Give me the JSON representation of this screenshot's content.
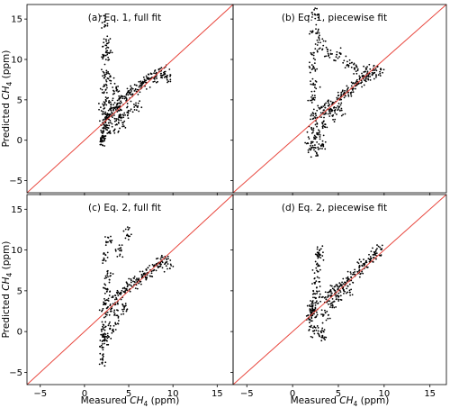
{
  "chart_data": [
    {
      "type": "scatter",
      "title": "(a) Eq. 1, full fit",
      "xlabel": "",
      "ylabel": "Predicted CH4 (ppm)",
      "xlim": [
        -6.5,
        16.8
      ],
      "ylim": [
        -6.5,
        16.8
      ],
      "xticks": [
        "−5",
        "0",
        "5",
        "10",
        "15"
      ],
      "yticks": [
        "−5",
        "0",
        "5",
        "10",
        "15"
      ],
      "reference_line": "1:1",
      "reference_line_color": "#e8453c",
      "marker_color": "#000000",
      "series": [
        {
          "values": [
            [
              2.0,
              0.2
            ],
            [
              2.1,
              1.0
            ],
            [
              2.2,
              2.0
            ],
            [
              2.3,
              3.0
            ],
            [
              2.2,
              4.0
            ],
            [
              2.5,
              5.0
            ],
            [
              2.7,
              2.5
            ],
            [
              2.4,
              1.5
            ],
            [
              3.0,
              3.5
            ],
            [
              3.2,
              4.0
            ],
            [
              3.5,
              4.5
            ],
            [
              3.8,
              3.8
            ],
            [
              4.0,
              4.8
            ],
            [
              4.5,
              5.2
            ],
            [
              5.0,
              5.8
            ],
            [
              5.5,
              6.0
            ],
            [
              6.0,
              6.4
            ],
            [
              6.5,
              7.0
            ],
            [
              7.0,
              7.2
            ],
            [
              7.5,
              7.8
            ],
            [
              8.0,
              8.0
            ],
            [
              8.5,
              8.2
            ],
            [
              9.0,
              8.4
            ],
            [
              9.5,
              7.9
            ],
            [
              3.0,
              1.0
            ],
            [
              3.5,
              2.0
            ],
            [
              4.0,
              3.0
            ],
            [
              2.3,
              8.0
            ],
            [
              2.3,
              10.0
            ],
            [
              2.4,
              12.0
            ],
            [
              2.2,
              14.5
            ],
            [
              2.6,
              11.0
            ],
            [
              2.8,
              7.5
            ],
            [
              2.2,
              6.5
            ],
            [
              3.6,
              6.2
            ],
            [
              4.2,
              2.2
            ],
            [
              5.0,
              3.5
            ],
            [
              6.0,
              4.2
            ],
            [
              2.1,
              -0.3
            ]
          ]
        }
      ]
    },
    {
      "type": "scatter",
      "title": "(b) Eq. 1, piecewise fit",
      "xlabel": "",
      "ylabel": "",
      "xlim": [
        -6.5,
        16.8
      ],
      "ylim": [
        -6.5,
        16.8
      ],
      "xticks": [
        "−5",
        "0",
        "5",
        "10",
        "15"
      ],
      "yticks": [
        "−5",
        "0",
        "5",
        "10",
        "15"
      ],
      "reference_line": "1:1",
      "reference_line_color": "#e8453c",
      "marker_color": "#000000",
      "series": [
        {
          "values": [
            [
              2.0,
              -1.0
            ],
            [
              2.1,
              0.0
            ],
            [
              2.2,
              1.5
            ],
            [
              2.3,
              3.0
            ],
            [
              2.2,
              5.0
            ],
            [
              2.4,
              7.0
            ],
            [
              2.3,
              9.0
            ],
            [
              2.5,
              11.0
            ],
            [
              2.4,
              13.5
            ],
            [
              2.3,
              15.8
            ],
            [
              3.0,
              3.5
            ],
            [
              3.5,
              4.0
            ],
            [
              4.0,
              4.5
            ],
            [
              4.5,
              4.0
            ],
            [
              5.0,
              5.0
            ],
            [
              5.5,
              5.5
            ],
            [
              6.0,
              6.0
            ],
            [
              6.5,
              6.5
            ],
            [
              7.0,
              7.0
            ],
            [
              7.5,
              7.5
            ],
            [
              8.0,
              7.8
            ],
            [
              8.5,
              8.2
            ],
            [
              9.0,
              8.6
            ],
            [
              9.5,
              8.5
            ],
            [
              5.0,
              10.5
            ],
            [
              6.0,
              9.5
            ],
            [
              7.0,
              9.0
            ],
            [
              8.0,
              8.5
            ],
            [
              4.0,
              10.8
            ],
            [
              3.0,
              12.0
            ],
            [
              2.8,
              0.5
            ],
            [
              3.2,
              -0.5
            ],
            [
              2.6,
              -1.2
            ],
            [
              3.5,
              2.0
            ],
            [
              4.2,
              3.0
            ],
            [
              5.2,
              3.8
            ]
          ]
        }
      ]
    },
    {
      "type": "scatter",
      "title": "(c) Eq. 2, full fit",
      "xlabel": "Measured CH4 (ppm)",
      "ylabel": "Predicted CH4 (ppm)",
      "xlim": [
        -6.5,
        16.8
      ],
      "ylim": [
        -6.5,
        16.8
      ],
      "xticks": [
        "−5",
        "0",
        "5",
        "10",
        "15"
      ],
      "yticks": [
        "−5",
        "0",
        "5",
        "10",
        "15"
      ],
      "reference_line": "1:1",
      "reference_line_color": "#e8453c",
      "marker_color": "#000000",
      "series": [
        {
          "values": [
            [
              2.0,
              -3.5
            ],
            [
              2.1,
              -2.0
            ],
            [
              2.2,
              -0.5
            ],
            [
              2.3,
              1.0
            ],
            [
              2.2,
              2.5
            ],
            [
              2.4,
              4.0
            ],
            [
              2.5,
              5.5
            ],
            [
              2.6,
              7.0
            ],
            [
              2.4,
              9.0
            ],
            [
              2.8,
              11.0
            ],
            [
              3.0,
              3.0
            ],
            [
              3.5,
              3.8
            ],
            [
              4.0,
              4.5
            ],
            [
              4.5,
              5.0
            ],
            [
              5.0,
              5.5
            ],
            [
              5.5,
              6.0
            ],
            [
              6.0,
              6.3
            ],
            [
              6.5,
              6.8
            ],
            [
              7.0,
              7.2
            ],
            [
              7.5,
              7.5
            ],
            [
              8.0,
              8.0
            ],
            [
              8.5,
              8.2
            ],
            [
              9.0,
              8.5
            ],
            [
              9.5,
              8.3
            ],
            [
              5.0,
              12.0
            ],
            [
              4.0,
              10.0
            ],
            [
              3.2,
              0.5
            ],
            [
              3.8,
              1.8
            ],
            [
              4.5,
              3.0
            ],
            [
              2.6,
              -1.0
            ]
          ]
        }
      ]
    },
    {
      "type": "scatter",
      "title": "(d) Eq. 2, piecewise fit",
      "xlabel": "Measured CH4 (ppm)",
      "ylabel": "",
      "xlim": [
        -6.5,
        16.8
      ],
      "ylim": [
        -6.5,
        16.8
      ],
      "xticks": [
        "−5",
        "0",
        "5",
        "10",
        "15"
      ],
      "yticks": [
        "−5",
        "0",
        "5",
        "10",
        "15"
      ],
      "reference_line": "1:1",
      "reference_line_color": "#e8453c",
      "marker_color": "#000000",
      "series": [
        {
          "values": [
            [
              2.0,
              1.5
            ],
            [
              2.1,
              2.5
            ],
            [
              2.2,
              3.0
            ],
            [
              2.3,
              2.0
            ],
            [
              2.4,
              3.5
            ],
            [
              2.5,
              4.5
            ],
            [
              2.6,
              6.0
            ],
            [
              2.7,
              8.0
            ],
            [
              2.8,
              9.5
            ],
            [
              3.0,
              9.6
            ],
            [
              3.5,
              4.0
            ],
            [
              4.0,
              4.5
            ],
            [
              4.5,
              5.0
            ],
            [
              5.0,
              5.5
            ],
            [
              5.5,
              5.8
            ],
            [
              6.0,
              6.2
            ],
            [
              6.5,
              6.8
            ],
            [
              7.0,
              7.3
            ],
            [
              7.5,
              7.8
            ],
            [
              8.0,
              8.3
            ],
            [
              8.5,
              8.8
            ],
            [
              9.0,
              9.5
            ],
            [
              9.5,
              10.0
            ],
            [
              3.0,
              0.0
            ],
            [
              3.3,
              -0.5
            ],
            [
              3.6,
              2.0
            ],
            [
              4.2,
              3.5
            ],
            [
              5.0,
              4.2
            ],
            [
              6.0,
              5.0
            ],
            [
              2.2,
              0.2
            ]
          ]
        }
      ]
    }
  ]
}
